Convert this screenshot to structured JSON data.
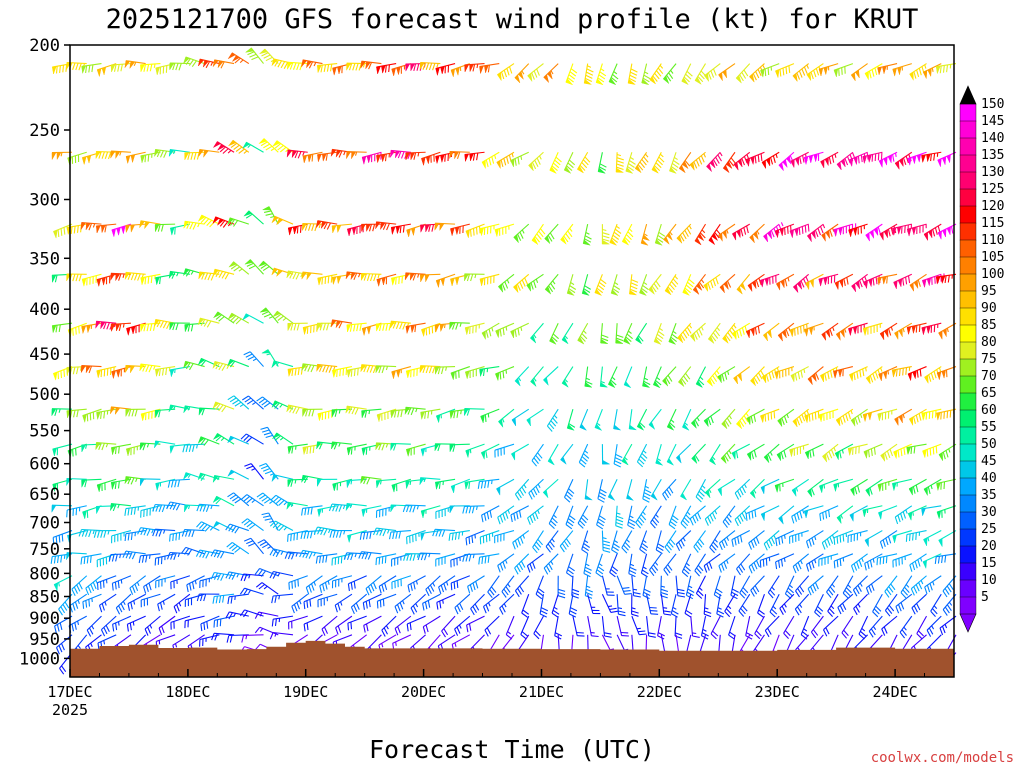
{
  "chart_data": {
    "type": "wind-barb-time-height",
    "title": "2025121700 GFS forecast wind profile (kt) for KRUT",
    "xlabel": "Forecast Time (UTC)",
    "ylabel": "",
    "credit": "coolwx.com/models",
    "x_axis": {
      "ticks": [
        "17DEC",
        "18DEC",
        "19DEC",
        "20DEC",
        "21DEC",
        "22DEC",
        "23DEC",
        "24DEC"
      ],
      "start_year": "2025",
      "range_hours": [
        0,
        180
      ]
    },
    "y_axis": {
      "ticks": [
        200,
        250,
        300,
        350,
        400,
        450,
        500,
        550,
        600,
        650,
        700,
        750,
        800,
        850,
        900,
        950,
        1000
      ],
      "range_hpa": [
        1050,
        200
      ],
      "scale": "log-pressure"
    },
    "colorbar": {
      "units": "kt",
      "levels": [
        5,
        10,
        15,
        20,
        25,
        30,
        35,
        40,
        45,
        50,
        55,
        60,
        65,
        70,
        75,
        80,
        85,
        90,
        95,
        100,
        105,
        110,
        115,
        120,
        125,
        130,
        135,
        140,
        145,
        150
      ]
    },
    "ground_surface_hpa": [
      [
        0,
        975
      ],
      [
        6,
        968
      ],
      [
        12,
        965
      ],
      [
        18,
        973
      ],
      [
        24,
        972
      ],
      [
        30,
        977
      ],
      [
        36,
        976
      ],
      [
        40,
        970
      ],
      [
        44,
        960
      ],
      [
        48,
        955
      ],
      [
        52,
        962
      ],
      [
        56,
        970
      ],
      [
        60,
        974
      ],
      [
        72,
        974
      ],
      [
        84,
        975
      ],
      [
        96,
        976
      ],
      [
        108,
        977
      ],
      [
        120,
        980
      ],
      [
        132,
        980
      ],
      [
        144,
        978
      ],
      [
        156,
        972
      ],
      [
        168,
        975
      ],
      [
        180,
        975
      ]
    ],
    "wind_levels_hpa": [
      210,
      265,
      320,
      365,
      415,
      465,
      520,
      570,
      625,
      670,
      715,
      760,
      805,
      845,
      895,
      940,
      985
    ],
    "wind_time_step_h": 3,
    "wind_knots_by_level": {
      "210": [
        [
          0,
          85
        ],
        [
          12,
          95
        ],
        [
          24,
          80
        ],
        [
          33,
          115
        ],
        [
          39,
          85
        ],
        [
          45,
          90
        ],
        [
          72,
          120
        ],
        [
          96,
          95
        ],
        [
          120,
          80
        ],
        [
          144,
          90
        ],
        [
          180,
          100
        ]
      ],
      "265": [
        [
          0,
          90
        ],
        [
          12,
          100
        ],
        [
          24,
          65
        ],
        [
          33,
          120
        ],
        [
          39,
          65
        ],
        [
          48,
          110
        ],
        [
          72,
          130
        ],
        [
          96,
          80
        ],
        [
          120,
          90
        ],
        [
          144,
          140
        ],
        [
          180,
          145
        ]
      ],
      "320": [
        [
          0,
          90
        ],
        [
          12,
          130
        ],
        [
          24,
          60
        ],
        [
          33,
          110
        ],
        [
          39,
          60
        ],
        [
          48,
          110
        ],
        [
          72,
          120
        ],
        [
          96,
          75
        ],
        [
          120,
          95
        ],
        [
          144,
          130
        ],
        [
          180,
          140
        ]
      ],
      "365": [
        [
          0,
          75
        ],
        [
          12,
          115
        ],
        [
          24,
          55
        ],
        [
          33,
          100
        ],
        [
          39,
          65
        ],
        [
          48,
          95
        ],
        [
          72,
          105
        ],
        [
          96,
          75
        ],
        [
          120,
          85
        ],
        [
          144,
          120
        ],
        [
          180,
          125
        ]
      ],
      "415": [
        [
          0,
          70
        ],
        [
          12,
          135
        ],
        [
          24,
          65
        ],
        [
          33,
          85
        ],
        [
          39,
          55
        ],
        [
          48,
          90
        ],
        [
          72,
          100
        ],
        [
          96,
          65
        ],
        [
          120,
          75
        ],
        [
          144,
          105
        ],
        [
          180,
          115
        ]
      ],
      "465": [
        [
          0,
          80
        ],
        [
          12,
          115
        ],
        [
          24,
          60
        ],
        [
          33,
          80
        ],
        [
          39,
          35
        ],
        [
          48,
          85
        ],
        [
          72,
          90
        ],
        [
          96,
          55
        ],
        [
          120,
          65
        ],
        [
          144,
          95
        ],
        [
          180,
          105
        ]
      ],
      "520": [
        [
          0,
          65
        ],
        [
          12,
          95
        ],
        [
          24,
          55
        ],
        [
          33,
          70
        ],
        [
          39,
          30
        ],
        [
          48,
          80
        ],
        [
          72,
          75
        ],
        [
          96,
          50
        ],
        [
          120,
          55
        ],
        [
          144,
          85
        ],
        [
          180,
          95
        ]
      ],
      "570": [
        [
          0,
          60
        ],
        [
          12,
          75
        ],
        [
          24,
          50
        ],
        [
          33,
          65
        ],
        [
          39,
          30
        ],
        [
          48,
          70
        ],
        [
          72,
          65
        ],
        [
          96,
          45
        ],
        [
          120,
          50
        ],
        [
          144,
          70
        ],
        [
          180,
          85
        ]
      ],
      "625": [
        [
          0,
          55
        ],
        [
          12,
          70
        ],
        [
          24,
          45
        ],
        [
          33,
          60
        ],
        [
          39,
          30
        ],
        [
          48,
          60
        ],
        [
          72,
          60
        ],
        [
          96,
          45
        ],
        [
          120,
          45
        ],
        [
          144,
          55
        ],
        [
          180,
          70
        ]
      ],
      "670": [
        [
          0,
          50
        ],
        [
          12,
          55
        ],
        [
          24,
          40
        ],
        [
          33,
          55
        ],
        [
          39,
          35
        ],
        [
          48,
          50
        ],
        [
          72,
          50
        ],
        [
          96,
          40
        ],
        [
          120,
          40
        ],
        [
          144,
          45
        ],
        [
          180,
          55
        ]
      ],
      "715": [
        [
          0,
          45
        ],
        [
          12,
          45
        ],
        [
          24,
          35
        ],
        [
          33,
          50
        ],
        [
          39,
          35
        ],
        [
          48,
          45
        ],
        [
          72,
          45
        ],
        [
          96,
          40
        ],
        [
          120,
          35
        ],
        [
          144,
          40
        ],
        [
          180,
          50
        ]
      ],
      "760": [
        [
          0,
          45
        ],
        [
          12,
          40
        ],
        [
          24,
          30
        ],
        [
          33,
          45
        ],
        [
          39,
          30
        ],
        [
          48,
          40
        ],
        [
          72,
          40
        ],
        [
          96,
          35
        ],
        [
          120,
          30
        ],
        [
          144,
          35
        ],
        [
          180,
          45
        ]
      ],
      "805": [
        [
          0,
          45
        ],
        [
          12,
          35
        ],
        [
          24,
          30
        ],
        [
          33,
          40
        ],
        [
          39,
          25
        ],
        [
          48,
          35
        ],
        [
          72,
          35
        ],
        [
          96,
          30
        ],
        [
          120,
          30
        ],
        [
          144,
          30
        ],
        [
          180,
          40
        ]
      ],
      "845": [
        [
          0,
          40
        ],
        [
          12,
          30
        ],
        [
          24,
          25
        ],
        [
          33,
          35
        ],
        [
          39,
          25
        ],
        [
          48,
          30
        ],
        [
          72,
          30
        ],
        [
          96,
          25
        ],
        [
          120,
          25
        ],
        [
          144,
          25
        ],
        [
          180,
          30
        ]
      ],
      "895": [
        [
          0,
          35
        ],
        [
          12,
          25
        ],
        [
          24,
          20
        ],
        [
          33,
          30
        ],
        [
          39,
          20
        ],
        [
          48,
          20
        ],
        [
          72,
          20
        ],
        [
          96,
          20
        ],
        [
          120,
          20
        ],
        [
          144,
          20
        ],
        [
          180,
          25
        ]
      ],
      "940": [
        [
          0,
          30
        ],
        [
          12,
          20
        ],
        [
          24,
          15
        ],
        [
          33,
          25
        ],
        [
          39,
          15
        ],
        [
          48,
          15
        ],
        [
          72,
          15
        ],
        [
          96,
          15
        ],
        [
          120,
          15
        ],
        [
          144,
          15
        ],
        [
          180,
          20
        ]
      ],
      "985": [
        [
          0,
          20
        ],
        [
          12,
          15
        ],
        [
          24,
          10
        ],
        [
          33,
          15
        ],
        [
          39,
          10
        ],
        [
          48,
          10
        ],
        [
          72,
          10
        ],
        [
          96,
          10
        ],
        [
          120,
          10
        ],
        [
          144,
          10
        ],
        [
          180,
          15
        ]
      ]
    },
    "wind_direction_by_time": [
      [
        0,
        260
      ],
      [
        24,
        270
      ],
      [
        36,
        300
      ],
      [
        42,
        320
      ],
      [
        48,
        270
      ],
      [
        84,
        260
      ],
      [
        108,
        190
      ],
      [
        144,
        240
      ],
      [
        180,
        250
      ]
    ]
  }
}
